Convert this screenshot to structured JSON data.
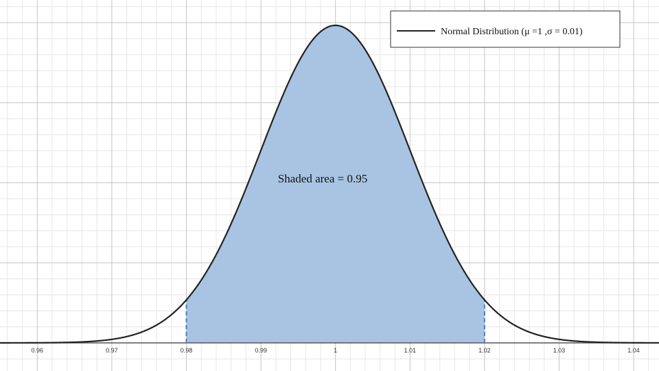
{
  "chart_data": {
    "type": "area",
    "title": "",
    "xlabel": "",
    "ylabel": "",
    "xlim": [
      0.955,
      1.0434
    ],
    "grid": true,
    "legend_position": "top-right",
    "legend": [
      {
        "label": "Normal Distribution (μ =1 ,σ = 0.01)",
        "color": "#222222"
      }
    ],
    "x_ticks": [
      "0.96",
      "0.97",
      "0.98",
      "0.99",
      "1",
      "1.01",
      "1.02",
      "1.03",
      "1.04"
    ],
    "x_tick_values": [
      0.96,
      0.97,
      0.98,
      0.99,
      1.0,
      1.01,
      1.02,
      1.03,
      1.04
    ],
    "series": [
      {
        "name": "Normal Distribution (μ =1 ,σ = 0.01)",
        "mean": 1,
        "sd": 0.01,
        "color": "#222222"
      }
    ],
    "shaded_region": {
      "from": 0.98,
      "to": 1.02,
      "color": "#a8c4e2",
      "edge_color": "#4a7fc1"
    },
    "annotation": "Shaded area = 0.95",
    "colors": {
      "curve": "#222222",
      "fill": "#a8c4e2",
      "boundary": "#4a7fc1",
      "grid_major": "#c4c4c4",
      "grid_minor": "#e6e6e6",
      "axis": "#555555"
    }
  }
}
